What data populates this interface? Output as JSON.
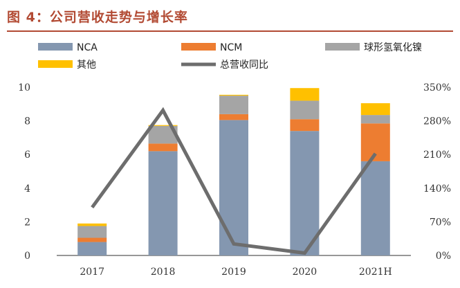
{
  "figure_title": "图 4：公司营收走势与增长率",
  "chart_data": {
    "type": "bar",
    "stacked": true,
    "categories": [
      "2017",
      "2018",
      "2019",
      "2020",
      "2021H"
    ],
    "series": [
      {
        "name": "NCA",
        "kind": "bar",
        "axis": "left",
        "color": "#8497b0",
        "values": [
          0.8,
          6.2,
          8.05,
          7.4,
          5.6
        ]
      },
      {
        "name": "NCM",
        "kind": "bar",
        "axis": "left",
        "color": "#ed7d31",
        "values": [
          0.25,
          0.45,
          0.35,
          0.7,
          2.25
        ]
      },
      {
        "name": "球形氢氧化镍",
        "kind": "bar",
        "axis": "left",
        "color": "#a5a5a5",
        "values": [
          0.7,
          1.05,
          1.1,
          1.1,
          0.5
        ]
      },
      {
        "name": "其他",
        "kind": "bar",
        "axis": "left",
        "color": "#ffc000",
        "values": [
          0.15,
          0.05,
          0.05,
          0.75,
          0.7
        ]
      },
      {
        "name": "总营收同比",
        "kind": "line",
        "axis": "right",
        "color": "#6d6d6d",
        "values": [
          100,
          302,
          24,
          5,
          212
        ]
      }
    ],
    "ylim_left": [
      0,
      10
    ],
    "yticks_left": [
      "0",
      "2",
      "4",
      "6",
      "8",
      "10"
    ],
    "ylim_right": [
      0,
      350
    ],
    "yticks_right": [
      "0%",
      "70%",
      "140%",
      "210%",
      "280%",
      "350%"
    ],
    "legend_position": "top",
    "grid": false,
    "xlabel": "",
    "ylabel": ""
  }
}
